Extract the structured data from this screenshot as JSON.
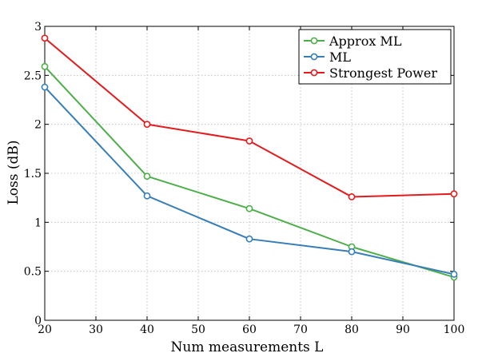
{
  "chart_data": {
    "type": "line",
    "title": "",
    "xlabel": "Num measurements L",
    "ylabel": "Loss (dB)",
    "xlim": [
      20,
      100
    ],
    "ylim": [
      0,
      3
    ],
    "xticks": [
      20,
      30,
      40,
      50,
      60,
      70,
      80,
      90,
      100
    ],
    "yticks": [
      0,
      0.5,
      1,
      1.5,
      2,
      2.5,
      3
    ],
    "xtick_labels": [
      "20",
      "30",
      "40",
      "50",
      "60",
      "70",
      "80",
      "90",
      "100"
    ],
    "ytick_labels": [
      "0",
      "0.5",
      "1",
      "1.5",
      "2",
      "2.5",
      "3"
    ],
    "grid": true,
    "legend_position": "top-right",
    "x": [
      20,
      40,
      60,
      80,
      100
    ],
    "series": [
      {
        "name": "Approx ML",
        "color": "#4daf4a",
        "values": [
          2.59,
          1.47,
          1.14,
          0.75,
          0.44
        ]
      },
      {
        "name": "ML",
        "color": "#377eb8",
        "values": [
          2.38,
          1.27,
          0.83,
          0.7,
          0.47
        ]
      },
      {
        "name": "Strongest Power",
        "color": "#e41a1c",
        "values": [
          2.88,
          2.0,
          1.83,
          1.26,
          1.29
        ]
      }
    ]
  }
}
